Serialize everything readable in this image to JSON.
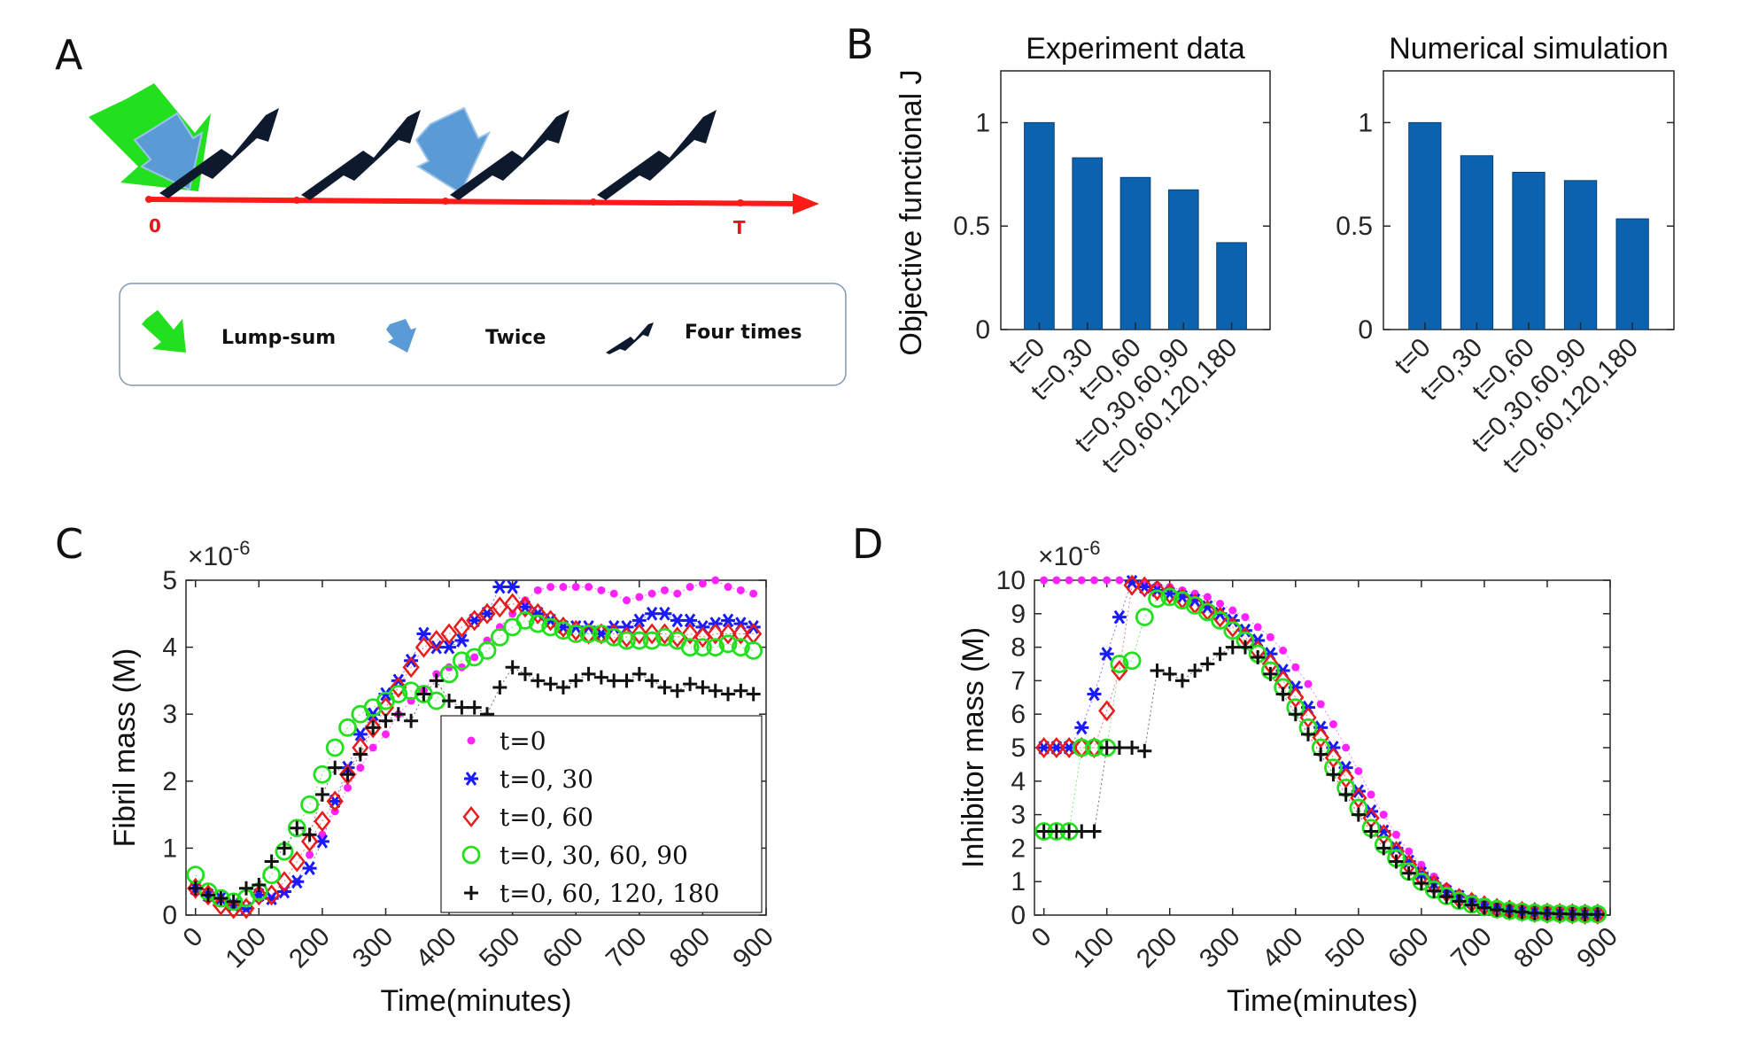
{
  "panels": {
    "A": {
      "letter": "A",
      "timeline": {
        "start_label": "0",
        "end_label": "T",
        "color": "#ff1a1a"
      },
      "legend": {
        "lump_sum": "Lump-sum",
        "twice": "Twice",
        "four_times": "Four times"
      },
      "colors": {
        "lump_sum": "#22e01e",
        "twice": "#5b9bd5",
        "four_times": "#0d1a2e"
      }
    },
    "B": {
      "letter": "B",
      "ylabel": "Objective functional J"
    },
    "C": {
      "letter": "C",
      "exponent": "×10",
      "exponent_power": "-6"
    },
    "D": {
      "letter": "D",
      "exponent": "×10",
      "exponent_power": "-6"
    }
  },
  "chart_data": [
    {
      "id": "B1",
      "type": "bar",
      "title": "Experiment data",
      "ylabel": "Objective functional J",
      "categories": [
        "t=0",
        "t=0,30",
        "t=0,60",
        "t=0,30,60,90",
        "t=0,60,120,180"
      ],
      "values": [
        1.0,
        0.83,
        0.735,
        0.675,
        0.42
      ],
      "ylim": [
        0,
        1.25
      ],
      "yticks": [
        0,
        0.5,
        1
      ],
      "ytick_labels": [
        "0",
        "0.5",
        "1"
      ],
      "color": "#0b63b0"
    },
    {
      "id": "B2",
      "type": "bar",
      "title": "Numerical simulation",
      "ylabel": "",
      "categories": [
        "t=0",
        "t=0,30",
        "t=0,60",
        "t=0,30,60,90",
        "t=0,60,120,180"
      ],
      "values": [
        1.0,
        0.84,
        0.76,
        0.72,
        0.535
      ],
      "ylim": [
        0,
        1.25
      ],
      "yticks": [
        0,
        0.5,
        1
      ],
      "ytick_labels": [
        "0",
        "0.5",
        "1"
      ],
      "color": "#0b63b0"
    },
    {
      "id": "C",
      "type": "scatter",
      "xlabel": "Time(minutes)",
      "ylabel": "Fibril mass (M)",
      "xlim": [
        -15,
        900
      ],
      "ylim": [
        0,
        5
      ],
      "xticks": [
        0,
        100,
        200,
        300,
        400,
        500,
        600,
        700,
        800,
        900
      ],
      "xtick_labels": [
        "0",
        "100",
        "200",
        "300",
        "400",
        "500",
        "600",
        "700",
        "800",
        "900"
      ],
      "yticks": [
        0,
        1,
        2,
        3,
        4,
        5
      ],
      "ytick_labels": [
        "0",
        "1",
        "2",
        "3",
        "4",
        "5"
      ],
      "legend_position": "lower-right",
      "x": [
        0,
        20,
        40,
        60,
        80,
        100,
        120,
        140,
        160,
        180,
        200,
        220,
        240,
        260,
        280,
        300,
        320,
        340,
        360,
        380,
        400,
        420,
        440,
        460,
        480,
        500,
        520,
        540,
        560,
        580,
        600,
        620,
        640,
        660,
        680,
        700,
        720,
        740,
        760,
        780,
        800,
        820,
        840,
        860,
        880
      ],
      "series": [
        {
          "name": "t=0",
          "marker": "dot",
          "color": "#ff22ff",
          "values": [
            0.4,
            0.3,
            0.25,
            0.15,
            0.1,
            0.3,
            0.25,
            0.35,
            0.5,
            0.9,
            1.2,
            1.55,
            1.9,
            2.2,
            2.5,
            2.7,
            3.0,
            3.2,
            3.35,
            3.6,
            3.7,
            3.7,
            3.85,
            4.1,
            4.3,
            4.5,
            4.7,
            4.85,
            4.9,
            4.9,
            4.9,
            4.9,
            4.85,
            4.8,
            4.7,
            4.75,
            4.8,
            4.85,
            4.8,
            4.9,
            4.95,
            5.0,
            4.9,
            4.85,
            4.8
          ]
        },
        {
          "name": "t=0, 30",
          "marker": "asterisk",
          "color": "#1a1aff",
          "values": [
            0.4,
            0.3,
            0.25,
            0.15,
            0.1,
            0.3,
            0.25,
            0.35,
            0.5,
            0.7,
            1.1,
            1.7,
            2.2,
            2.7,
            3.0,
            3.3,
            3.5,
            3.8,
            4.2,
            4.0,
            4.0,
            4.1,
            4.4,
            4.5,
            4.9,
            4.9,
            4.6,
            4.5,
            4.4,
            4.3,
            4.3,
            4.3,
            4.2,
            4.3,
            4.3,
            4.4,
            4.5,
            4.5,
            4.4,
            4.4,
            4.3,
            4.35,
            4.4,
            4.35,
            4.3
          ]
        },
        {
          "name": "t=0, 60",
          "marker": "diamond",
          "color": "#e81c1c",
          "values": [
            0.4,
            0.3,
            0.15,
            0.1,
            0.1,
            0.3,
            0.3,
            0.5,
            0.8,
            1.1,
            1.4,
            1.7,
            2.1,
            2.5,
            2.8,
            3.1,
            3.4,
            3.7,
            4.0,
            4.1,
            4.2,
            4.3,
            4.4,
            4.5,
            4.6,
            4.65,
            4.6,
            4.5,
            4.4,
            4.3,
            4.25,
            4.2,
            4.2,
            4.2,
            4.15,
            4.2,
            4.2,
            4.2,
            4.15,
            4.2,
            4.15,
            4.2,
            4.2,
            4.2,
            4.2
          ]
        },
        {
          "name": "t=0, 30, 60, 90",
          "marker": "circle",
          "color": "#22e01e",
          "values": [
            0.6,
            0.35,
            0.25,
            0.2,
            0.25,
            0.35,
            0.6,
            0.95,
            1.3,
            1.65,
            2.1,
            2.5,
            2.8,
            3.0,
            3.1,
            3.2,
            3.3,
            3.35,
            3.3,
            3.2,
            3.6,
            3.8,
            3.85,
            3.95,
            4.15,
            4.3,
            4.4,
            4.35,
            4.3,
            4.25,
            4.2,
            4.2,
            4.2,
            4.15,
            4.1,
            4.1,
            4.1,
            4.15,
            4.1,
            4.0,
            4.0,
            4.0,
            4.05,
            4.0,
            3.95
          ]
        },
        {
          "name": "t=0, 60, 120, 180",
          "marker": "plus",
          "color": "#111111",
          "values": [
            0.4,
            0.3,
            0.25,
            0.2,
            0.4,
            0.45,
            0.8,
            1.0,
            1.3,
            1.2,
            1.8,
            2.2,
            2.1,
            2.4,
            2.8,
            2.9,
            3.0,
            2.9,
            3.3,
            3.5,
            3.2,
            3.1,
            3.1,
            3.0,
            3.4,
            3.7,
            3.6,
            3.5,
            3.45,
            3.4,
            3.5,
            3.6,
            3.55,
            3.5,
            3.5,
            3.6,
            3.5,
            3.4,
            3.35,
            3.45,
            3.4,
            3.35,
            3.3,
            3.35,
            3.3
          ]
        }
      ]
    },
    {
      "id": "D",
      "type": "scatter",
      "xlabel": "Time(minutes)",
      "ylabel": "Inhibitor mass (M)",
      "xlim": [
        -15,
        900
      ],
      "ylim": [
        0,
        10
      ],
      "xticks": [
        0,
        100,
        200,
        300,
        400,
        500,
        600,
        700,
        800,
        900
      ],
      "xtick_labels": [
        "0",
        "100",
        "200",
        "300",
        "400",
        "500",
        "600",
        "700",
        "800",
        "900"
      ],
      "yticks": [
        0,
        1,
        2,
        3,
        4,
        5,
        6,
        7,
        8,
        9,
        10
      ],
      "ytick_labels": [
        "0",
        "1",
        "2",
        "3",
        "4",
        "5",
        "6",
        "7",
        "8",
        "9",
        "10"
      ],
      "x": [
        0,
        20,
        40,
        60,
        80,
        100,
        120,
        140,
        160,
        180,
        200,
        220,
        240,
        260,
        280,
        300,
        320,
        340,
        360,
        380,
        400,
        420,
        440,
        460,
        480,
        500,
        520,
        540,
        560,
        580,
        600,
        620,
        640,
        660,
        680,
        700,
        720,
        740,
        760,
        780,
        800,
        820,
        840,
        860,
        880
      ],
      "series": [
        {
          "name": "t=0",
          "marker": "dot",
          "color": "#ff22ff",
          "values": [
            10,
            10,
            10,
            10,
            10,
            10,
            10,
            9.95,
            9.9,
            9.85,
            9.8,
            9.7,
            9.6,
            9.5,
            9.3,
            9.1,
            8.9,
            8.6,
            8.3,
            7.9,
            7.4,
            6.9,
            6.3,
            5.7,
            5.0,
            4.3,
            3.6,
            3.0,
            2.4,
            1.9,
            1.5,
            1.15,
            0.85,
            0.65,
            0.5,
            0.35,
            0.25,
            0.2,
            0.15,
            0.1,
            0.08,
            0.06,
            0.05,
            0.04,
            0.03
          ]
        },
        {
          "name": "t=0, 30",
          "marker": "asterisk",
          "color": "#1a1aff",
          "values": [
            5,
            5,
            5,
            5.6,
            6.6,
            7.8,
            8.9,
            9.95,
            9.8,
            9.7,
            9.6,
            9.5,
            9.4,
            9.2,
            9.0,
            8.8,
            8.5,
            8.2,
            7.8,
            7.3,
            6.8,
            6.2,
            5.6,
            5.0,
            4.4,
            3.7,
            3.1,
            2.5,
            2.0,
            1.6,
            1.25,
            0.95,
            0.7,
            0.55,
            0.4,
            0.3,
            0.22,
            0.17,
            0.12,
            0.09,
            0.07,
            0.05,
            0.04,
            0.03,
            0.03
          ]
        },
        {
          "name": "t=0, 60",
          "marker": "diamond",
          "color": "#e81c1c",
          "values": [
            5,
            5,
            5,
            5,
            5,
            6.1,
            7.3,
            9.85,
            9.8,
            9.7,
            9.6,
            9.45,
            9.3,
            9.1,
            8.9,
            8.6,
            8.3,
            7.9,
            7.5,
            7.0,
            6.5,
            5.9,
            5.3,
            4.7,
            4.1,
            3.5,
            2.9,
            2.4,
            1.9,
            1.5,
            1.15,
            0.9,
            0.68,
            0.5,
            0.38,
            0.28,
            0.2,
            0.15,
            0.11,
            0.08,
            0.06,
            0.05,
            0.04,
            0.03,
            0.03
          ]
        },
        {
          "name": "t=0, 30, 60, 90",
          "marker": "circle",
          "color": "#22e01e",
          "values": [
            2.5,
            2.5,
            2.5,
            5,
            5,
            5,
            7.5,
            7.6,
            8.9,
            9.45,
            9.5,
            9.4,
            9.25,
            9.05,
            8.8,
            8.5,
            8.2,
            7.8,
            7.3,
            6.8,
            6.2,
            5.6,
            5.0,
            4.4,
            3.8,
            3.2,
            2.6,
            2.1,
            1.7,
            1.3,
            1.0,
            0.76,
            0.57,
            0.43,
            0.32,
            0.24,
            0.18,
            0.13,
            0.1,
            0.07,
            0.06,
            0.05,
            0.04,
            0.03,
            0.03
          ]
        },
        {
          "name": "t=0, 60, 120, 180",
          "marker": "plus",
          "color": "#111111",
          "values": [
            2.5,
            2.5,
            2.5,
            2.5,
            2.5,
            5,
            5,
            5,
            4.9,
            7.3,
            7.2,
            7.0,
            7.3,
            7.5,
            7.8,
            8.0,
            8.0,
            7.7,
            7.2,
            6.6,
            6.0,
            5.4,
            4.8,
            4.2,
            3.6,
            3.0,
            2.5,
            2.0,
            1.6,
            1.25,
            0.95,
            0.72,
            0.55,
            0.41,
            0.3,
            0.22,
            0.16,
            0.12,
            0.09,
            0.06,
            0.05,
            0.04,
            0.03,
            0.02,
            0.02
          ]
        }
      ]
    }
  ]
}
